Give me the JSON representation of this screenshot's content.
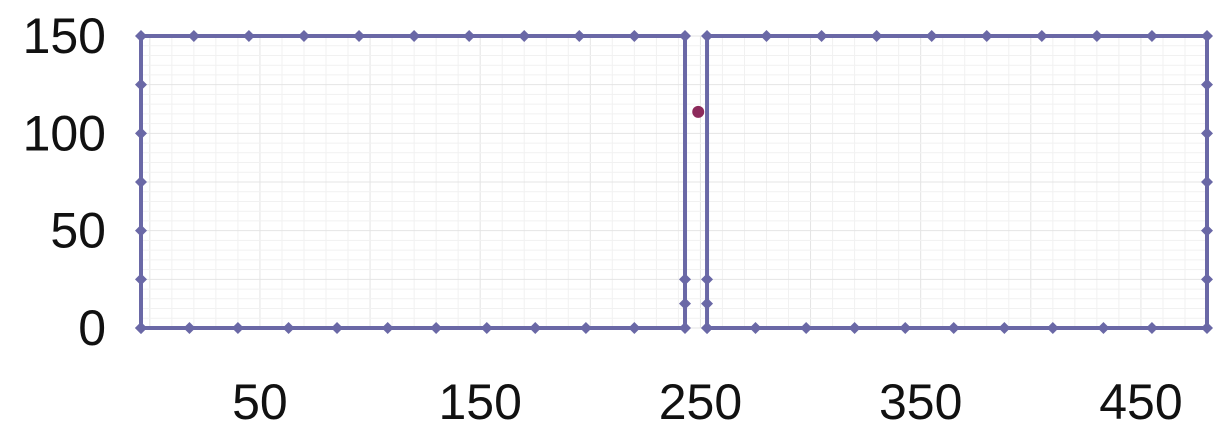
{
  "chart_data": {
    "type": "line",
    "title": "",
    "xlabel": "",
    "ylabel": "",
    "xlim": [
      -4,
      480
    ],
    "ylim": [
      0,
      150
    ],
    "grid": true,
    "x_ticks": [
      {
        "value": 50,
        "label": "50"
      },
      {
        "value": 150,
        "label": "150"
      },
      {
        "value": 250,
        "label": "250"
      },
      {
        "value": 350,
        "label": "350"
      },
      {
        "value": 450,
        "label": "450"
      }
    ],
    "y_ticks": [
      {
        "value": 0,
        "label": "0"
      },
      {
        "value": 50,
        "label": "50"
      },
      {
        "value": 100,
        "label": "100"
      },
      {
        "value": 150,
        "label": "150"
      }
    ],
    "series": [
      {
        "color": "#6a68a6",
        "marker": "diamond",
        "points": [
          [
            -4,
            0
          ],
          [
            -4,
            25
          ],
          [
            -4,
            50
          ],
          [
            -4,
            75
          ],
          [
            -4,
            100
          ],
          [
            -4,
            125
          ],
          [
            -4,
            150
          ],
          [
            20,
            150
          ],
          [
            45,
            150
          ],
          [
            70,
            150
          ],
          [
            95,
            150
          ],
          [
            120,
            150
          ],
          [
            145,
            150
          ],
          [
            170,
            150
          ],
          [
            195,
            150
          ],
          [
            220,
            150
          ],
          [
            243,
            150
          ],
          [
            243,
            25
          ],
          [
            243,
            12.5
          ],
          [
            243,
            0
          ],
          [
            220,
            0
          ],
          [
            198,
            0
          ],
          [
            175,
            0
          ],
          [
            153,
            0
          ],
          [
            130,
            0
          ],
          [
            108,
            0
          ],
          [
            85,
            0
          ],
          [
            63,
            0
          ],
          [
            40,
            0
          ],
          [
            18,
            0
          ],
          [
            -4,
            0
          ]
        ]
      },
      {
        "color": "#6a68a6",
        "marker": "diamond",
        "points": [
          [
            253,
            0
          ],
          [
            275,
            0
          ],
          [
            298,
            0
          ],
          [
            320,
            0
          ],
          [
            343,
            0
          ],
          [
            365,
            0
          ],
          [
            388,
            0
          ],
          [
            410,
            0
          ],
          [
            433,
            0
          ],
          [
            455,
            0
          ],
          [
            480,
            0
          ],
          [
            480,
            25
          ],
          [
            480,
            50
          ],
          [
            480,
            75
          ],
          [
            480,
            100
          ],
          [
            480,
            125
          ],
          [
            480,
            150
          ],
          [
            455,
            150
          ],
          [
            430,
            150
          ],
          [
            405,
            150
          ],
          [
            380,
            150
          ],
          [
            355,
            150
          ],
          [
            330,
            150
          ],
          [
            305,
            150
          ],
          [
            280,
            150
          ],
          [
            253,
            150
          ],
          [
            253,
            25
          ],
          [
            253,
            12.5
          ],
          [
            253,
            0
          ]
        ]
      }
    ],
    "point_markers": [
      {
        "x": 249,
        "y": 111,
        "color": "#8c2a5b"
      }
    ]
  }
}
